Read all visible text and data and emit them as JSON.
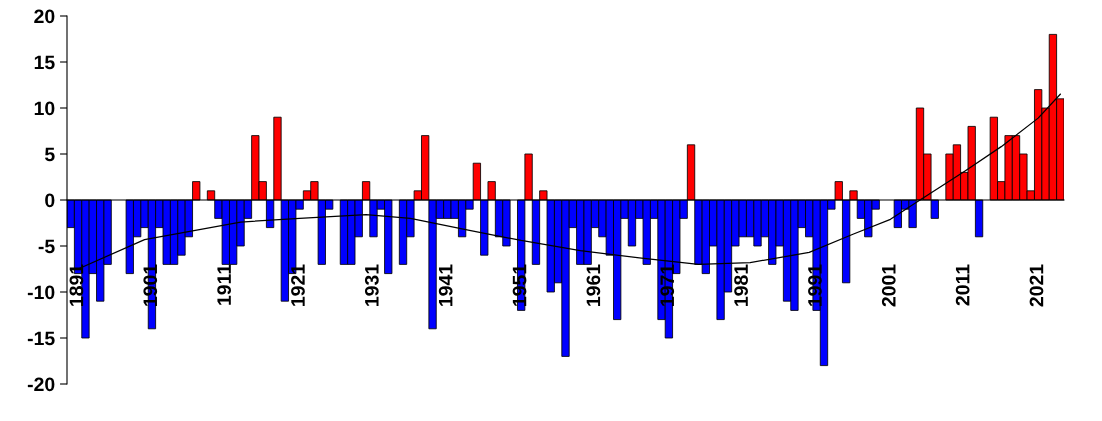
{
  "chart_data": {
    "type": "bar",
    "x": [
      1890,
      1891,
      1892,
      1893,
      1894,
      1895,
      1896,
      1897,
      1898,
      1899,
      1900,
      1901,
      1902,
      1903,
      1904,
      1905,
      1906,
      1907,
      1908,
      1909,
      1910,
      1911,
      1912,
      1913,
      1914,
      1915,
      1916,
      1917,
      1918,
      1919,
      1920,
      1921,
      1922,
      1923,
      1924,
      1925,
      1926,
      1927,
      1928,
      1929,
      1930,
      1931,
      1932,
      1933,
      1934,
      1935,
      1936,
      1937,
      1938,
      1939,
      1940,
      1941,
      1942,
      1943,
      1944,
      1945,
      1946,
      1947,
      1948,
      1949,
      1950,
      1951,
      1952,
      1953,
      1954,
      1955,
      1956,
      1957,
      1958,
      1959,
      1960,
      1961,
      1962,
      1963,
      1964,
      1965,
      1966,
      1967,
      1968,
      1969,
      1970,
      1971,
      1972,
      1973,
      1974,
      1975,
      1976,
      1977,
      1978,
      1979,
      1980,
      1981,
      1982,
      1983,
      1984,
      1985,
      1986,
      1987,
      1988,
      1989,
      1990,
      1991,
      1992,
      1993,
      1994,
      1995,
      1996,
      1997,
      1998,
      1999,
      2000,
      2001,
      2002,
      2003,
      2004,
      2005,
      2006,
      2007,
      2008,
      2009,
      2010,
      2011,
      2012,
      2013,
      2014,
      2015,
      2016,
      2017,
      2018,
      2019,
      2020,
      2021,
      2022,
      2023,
      2024
    ],
    "series": [
      {
        "values": [
          -3,
          -8,
          -15,
          -8,
          -11,
          -7,
          0,
          0,
          -8,
          -4,
          -3,
          -14,
          -3,
          -7,
          -7,
          -6,
          -4,
          2,
          0,
          1,
          -2,
          -7,
          -7,
          -5,
          -2,
          7,
          2,
          -3,
          9,
          -11,
          -8,
          -1,
          1,
          2,
          -7,
          -1,
          0,
          -7,
          -7,
          -4,
          2,
          -4,
          -1,
          -8,
          0,
          -7,
          -4,
          1,
          7,
          -14,
          -2,
          -2,
          -2,
          -4,
          -1,
          4,
          -6,
          2,
          -4,
          -5,
          0,
          -12,
          5,
          -7,
          1,
          -10,
          -9,
          -17,
          -3,
          -7,
          -7,
          -3,
          -4,
          -6,
          -13,
          -2,
          -5,
          -2,
          -7,
          -2,
          -13,
          -15,
          -8,
          -2,
          6,
          -7,
          -8,
          -5,
          -13,
          -10,
          -5,
          -4,
          -4,
          -5,
          -4,
          -7,
          -5,
          -11,
          -12,
          -3,
          -4,
          -12,
          -18,
          -1,
          2,
          -9,
          1,
          -2,
          -4,
          -1,
          0,
          0,
          -3,
          -1,
          -3,
          10,
          5,
          -2,
          0,
          5,
          6,
          3,
          8,
          -4,
          0,
          9,
          2,
          7,
          7,
          5,
          1,
          12,
          10,
          18,
          11
        ],
        "colors": [
          "#0000ff",
          "#0000ff",
          "#0000ff",
          "#0000ff",
          "#0000ff",
          "#0000ff",
          "#0000ff",
          "#0000ff",
          "#0000ff",
          "#0000ff",
          "#0000ff",
          "#0000ff",
          "#0000ff",
          "#0000ff",
          "#0000ff",
          "#0000ff",
          "#0000ff",
          "#ff0000",
          "#0000ff",
          "#ff0000",
          "#0000ff",
          "#0000ff",
          "#0000ff",
          "#0000ff",
          "#0000ff",
          "#ff0000",
          "#ff0000",
          "#0000ff",
          "#ff0000",
          "#0000ff",
          "#0000ff",
          "#0000ff",
          "#ff0000",
          "#ff0000",
          "#0000ff",
          "#0000ff",
          "#0000ff",
          "#0000ff",
          "#0000ff",
          "#0000ff",
          "#ff0000",
          "#0000ff",
          "#0000ff",
          "#0000ff",
          "#0000ff",
          "#0000ff",
          "#0000ff",
          "#ff0000",
          "#ff0000",
          "#0000ff",
          "#0000ff",
          "#0000ff",
          "#0000ff",
          "#0000ff",
          "#0000ff",
          "#ff0000",
          "#0000ff",
          "#ff0000",
          "#0000ff",
          "#0000ff",
          "#0000ff",
          "#0000ff",
          "#ff0000",
          "#0000ff",
          "#ff0000",
          "#0000ff",
          "#0000ff",
          "#0000ff",
          "#0000ff",
          "#0000ff",
          "#0000ff",
          "#0000ff",
          "#0000ff",
          "#0000ff",
          "#0000ff",
          "#0000ff",
          "#0000ff",
          "#0000ff",
          "#0000ff",
          "#0000ff",
          "#0000ff",
          "#0000ff",
          "#0000ff",
          "#0000ff",
          "#ff0000",
          "#0000ff",
          "#0000ff",
          "#0000ff",
          "#0000ff",
          "#0000ff",
          "#0000ff",
          "#0000ff",
          "#0000ff",
          "#0000ff",
          "#0000ff",
          "#0000ff",
          "#0000ff",
          "#0000ff",
          "#0000ff",
          "#0000ff",
          "#0000ff",
          "#0000ff",
          "#0000ff",
          "#0000ff",
          "#ff0000",
          "#0000ff",
          "#ff0000",
          "#0000ff",
          "#0000ff",
          "#0000ff",
          "#0000ff",
          "#0000ff",
          "#0000ff",
          "#0000ff",
          "#0000ff",
          "#ff0000",
          "#ff0000",
          "#0000ff",
          "#0000ff",
          "#ff0000",
          "#ff0000",
          "#ff0000",
          "#ff0000",
          "#0000ff",
          "#0000ff",
          "#ff0000",
          "#ff0000",
          "#ff0000",
          "#ff0000",
          "#ff0000",
          "#ff0000",
          "#ff0000",
          "#ff0000",
          "#ff0000",
          "#ff0000"
        ]
      },
      {
        "type": "line",
        "color": "#000000",
        "x": [
          1891,
          1900,
          1913,
          1921,
          1930,
          1936,
          1944,
          1951,
          1959,
          1967,
          1975,
          1982,
          1990,
          1996,
          2001,
          2005,
          2011,
          2016,
          2021,
          2024
        ],
        "values": [
          -7.5,
          -4.3,
          -2.4,
          -2.0,
          -1.6,
          -2.0,
          -3.3,
          -4.4,
          -5.5,
          -6.3,
          -7.0,
          -6.8,
          -5.7,
          -3.7,
          -2.1,
          0,
          3.1,
          5.8,
          8.9,
          11.5
        ]
      }
    ],
    "xlim": [
      1889.5,
      2024.5
    ],
    "xticks": [
      1891,
      1901,
      1911,
      1921,
      1931,
      1941,
      1951,
      1961,
      1971,
      1981,
      1991,
      2001,
      2011,
      2021
    ],
    "ylim": [
      -20,
      20
    ],
    "yticks": [
      -20,
      -15,
      -10,
      -5,
      0,
      5,
      10,
      15,
      20
    ]
  }
}
